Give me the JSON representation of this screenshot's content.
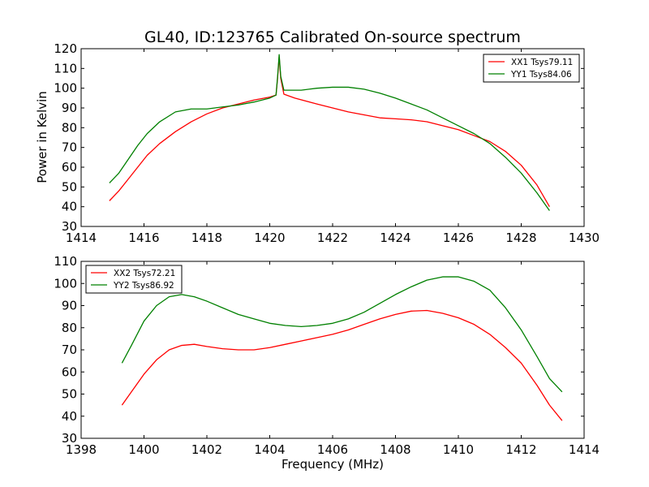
{
  "figure": {
    "title": "GL40, ID:123765 Calibrated On-source spectrum",
    "ylabel": "Power in Kelvin",
    "xlabel": "Frequency (MHz)"
  },
  "chart_data": [
    {
      "type": "line",
      "title": "GL40, ID:123765 Calibrated On-source spectrum",
      "xlabel": "",
      "ylabel": "Power in Kelvin",
      "xlim": [
        1414,
        1430
      ],
      "ylim": [
        30,
        120
      ],
      "xticks": [
        1414,
        1416,
        1418,
        1420,
        1422,
        1424,
        1426,
        1428,
        1430
      ],
      "yticks": [
        30,
        40,
        50,
        60,
        70,
        80,
        90,
        100,
        110,
        120
      ],
      "grid": false,
      "legend_position": "top-right",
      "series": [
        {
          "name": "XX1 Tsys79.11",
          "color": "#ff0000",
          "points": [
            [
              1414.9,
              43
            ],
            [
              1415.2,
              48
            ],
            [
              1415.5,
              54
            ],
            [
              1415.8,
              60
            ],
            [
              1416.1,
              66
            ],
            [
              1416.5,
              72
            ],
            [
              1417.0,
              78
            ],
            [
              1417.5,
              83
            ],
            [
              1418.0,
              87
            ],
            [
              1418.5,
              90
            ],
            [
              1419.0,
              92
            ],
            [
              1419.5,
              94
            ],
            [
              1420.0,
              95.5
            ],
            [
              1420.2,
              96.5
            ],
            [
              1420.25,
              105
            ],
            [
              1420.3,
              116
            ],
            [
              1420.35,
              105
            ],
            [
              1420.45,
              97
            ],
            [
              1420.8,
              95
            ],
            [
              1421.5,
              92
            ],
            [
              1422.0,
              90
            ],
            [
              1422.5,
              88
            ],
            [
              1423.0,
              86.5
            ],
            [
              1423.5,
              85
            ],
            [
              1424.0,
              84.5
            ],
            [
              1424.5,
              84
            ],
            [
              1425.0,
              83
            ],
            [
              1425.5,
              81
            ],
            [
              1426.0,
              79
            ],
            [
              1426.5,
              76
            ],
            [
              1427.0,
              73
            ],
            [
              1427.5,
              68
            ],
            [
              1428.0,
              61
            ],
            [
              1428.5,
              51
            ],
            [
              1428.9,
              40
            ]
          ]
        },
        {
          "name": "YY1 Tsys84.06",
          "color": "#008000",
          "points": [
            [
              1414.9,
              52
            ],
            [
              1415.2,
              57
            ],
            [
              1415.5,
              64
            ],
            [
              1415.8,
              71
            ],
            [
              1416.1,
              77
            ],
            [
              1416.5,
              83
            ],
            [
              1417.0,
              88
            ],
            [
              1417.5,
              89.5
            ],
            [
              1418.0,
              89.5
            ],
            [
              1418.5,
              90.5
            ],
            [
              1419.0,
              91.5
            ],
            [
              1419.5,
              93
            ],
            [
              1420.0,
              95
            ],
            [
              1420.2,
              96.5
            ],
            [
              1420.25,
              106
            ],
            [
              1420.3,
              117
            ],
            [
              1420.35,
              106
            ],
            [
              1420.45,
              99
            ],
            [
              1421.0,
              99
            ],
            [
              1421.5,
              100
            ],
            [
              1422.0,
              100.5
            ],
            [
              1422.5,
              100.5
            ],
            [
              1423.0,
              99.5
            ],
            [
              1423.5,
              97.5
            ],
            [
              1424.0,
              95
            ],
            [
              1424.5,
              92
            ],
            [
              1425.0,
              89
            ],
            [
              1425.5,
              85
            ],
            [
              1426.0,
              81
            ],
            [
              1426.5,
              77
            ],
            [
              1427.0,
              72
            ],
            [
              1427.5,
              65
            ],
            [
              1428.0,
              57
            ],
            [
              1428.5,
              47
            ],
            [
              1428.9,
              38
            ]
          ]
        }
      ]
    },
    {
      "type": "line",
      "title": "",
      "xlabel": "Frequency (MHz)",
      "ylabel": "",
      "xlim": [
        1398,
        1414
      ],
      "ylim": [
        30,
        110
      ],
      "xticks": [
        1398,
        1400,
        1402,
        1404,
        1406,
        1408,
        1410,
        1412,
        1414
      ],
      "yticks": [
        30,
        40,
        50,
        60,
        70,
        80,
        90,
        100,
        110
      ],
      "grid": false,
      "legend_position": "top-left",
      "series": [
        {
          "name": "XX2 Tsys72.21",
          "color": "#ff0000",
          "points": [
            [
              1399.3,
              45
            ],
            [
              1399.6,
              51
            ],
            [
              1400.0,
              59
            ],
            [
              1400.4,
              65.5
            ],
            [
              1400.8,
              70
            ],
            [
              1401.2,
              72
            ],
            [
              1401.6,
              72.5
            ],
            [
              1402.0,
              71.5
            ],
            [
              1402.5,
              70.5
            ],
            [
              1403.0,
              70
            ],
            [
              1403.5,
              70
            ],
            [
              1404.0,
              71
            ],
            [
              1404.5,
              72.5
            ],
            [
              1405.0,
              74
            ],
            [
              1405.5,
              75.5
            ],
            [
              1406.0,
              77
            ],
            [
              1406.5,
              79
            ],
            [
              1407.0,
              81.5
            ],
            [
              1407.5,
              84
            ],
            [
              1408.0,
              86
            ],
            [
              1408.5,
              87.5
            ],
            [
              1409.0,
              87.8
            ],
            [
              1409.5,
              86.5
            ],
            [
              1410.0,
              84.5
            ],
            [
              1410.5,
              81.5
            ],
            [
              1411.0,
              77
            ],
            [
              1411.5,
              71
            ],
            [
              1412.0,
              64
            ],
            [
              1412.5,
              54
            ],
            [
              1412.9,
              45
            ],
            [
              1413.3,
              38
            ]
          ]
        },
        {
          "name": "YY2 Tsys86.92",
          "color": "#008000",
          "points": [
            [
              1399.3,
              64
            ],
            [
              1399.6,
              72
            ],
            [
              1400.0,
              83
            ],
            [
              1400.4,
              90
            ],
            [
              1400.8,
              94
            ],
            [
              1401.2,
              95
            ],
            [
              1401.6,
              94
            ],
            [
              1402.0,
              92
            ],
            [
              1402.5,
              89
            ],
            [
              1403.0,
              86
            ],
            [
              1403.5,
              84
            ],
            [
              1404.0,
              82
            ],
            [
              1404.5,
              81
            ],
            [
              1405.0,
              80.5
            ],
            [
              1405.5,
              81
            ],
            [
              1406.0,
              82
            ],
            [
              1406.5,
              84
            ],
            [
              1407.0,
              87
            ],
            [
              1407.5,
              91
            ],
            [
              1408.0,
              95
            ],
            [
              1408.5,
              98.5
            ],
            [
              1409.0,
              101.5
            ],
            [
              1409.5,
              103
            ],
            [
              1410.0,
              103
            ],
            [
              1410.5,
              101
            ],
            [
              1411.0,
              97
            ],
            [
              1411.5,
              89
            ],
            [
              1412.0,
              79
            ],
            [
              1412.5,
              67
            ],
            [
              1412.9,
              57
            ],
            [
              1413.3,
              51
            ]
          ]
        }
      ]
    }
  ]
}
